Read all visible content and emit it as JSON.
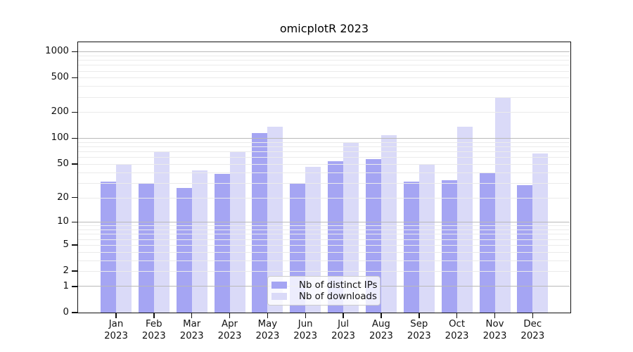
{
  "chart_data": {
    "type": "bar",
    "title": "omicplotR 2023",
    "categories": [
      "Jan",
      "Feb",
      "Mar",
      "Apr",
      "May",
      "Jun",
      "Jul",
      "Aug",
      "Sep",
      "Oct",
      "Nov",
      "Dec"
    ],
    "x_year": "2023",
    "series": [
      {
        "key": "distinct-ips",
        "name": "Nb of distinct IPs",
        "color": "#a5a5f3",
        "values": [
          31,
          30,
          26,
          38,
          114,
          30,
          54,
          57,
          31,
          32,
          40,
          28
        ]
      },
      {
        "key": "downloads",
        "name": "Nb of downloads",
        "color": "#dadaf8",
        "values": [
          49,
          70,
          42,
          69,
          137,
          46,
          90,
          108,
          50,
          136,
          291,
          67
        ]
      }
    ],
    "yscale": "log10(1+x)",
    "ylim": [
      0,
      1280
    ],
    "y_ticks": [
      1000,
      500,
      200,
      100,
      50,
      20,
      10,
      5,
      2,
      1,
      0
    ],
    "grid": true,
    "legend_position": "lower center"
  },
  "colors": {
    "background": "#ffffff",
    "axis": "#111111",
    "grid_major": "#b9b9b9",
    "grid_minor": "#ebebeb",
    "text": "#111111",
    "legend_border": "#cccccc"
  }
}
